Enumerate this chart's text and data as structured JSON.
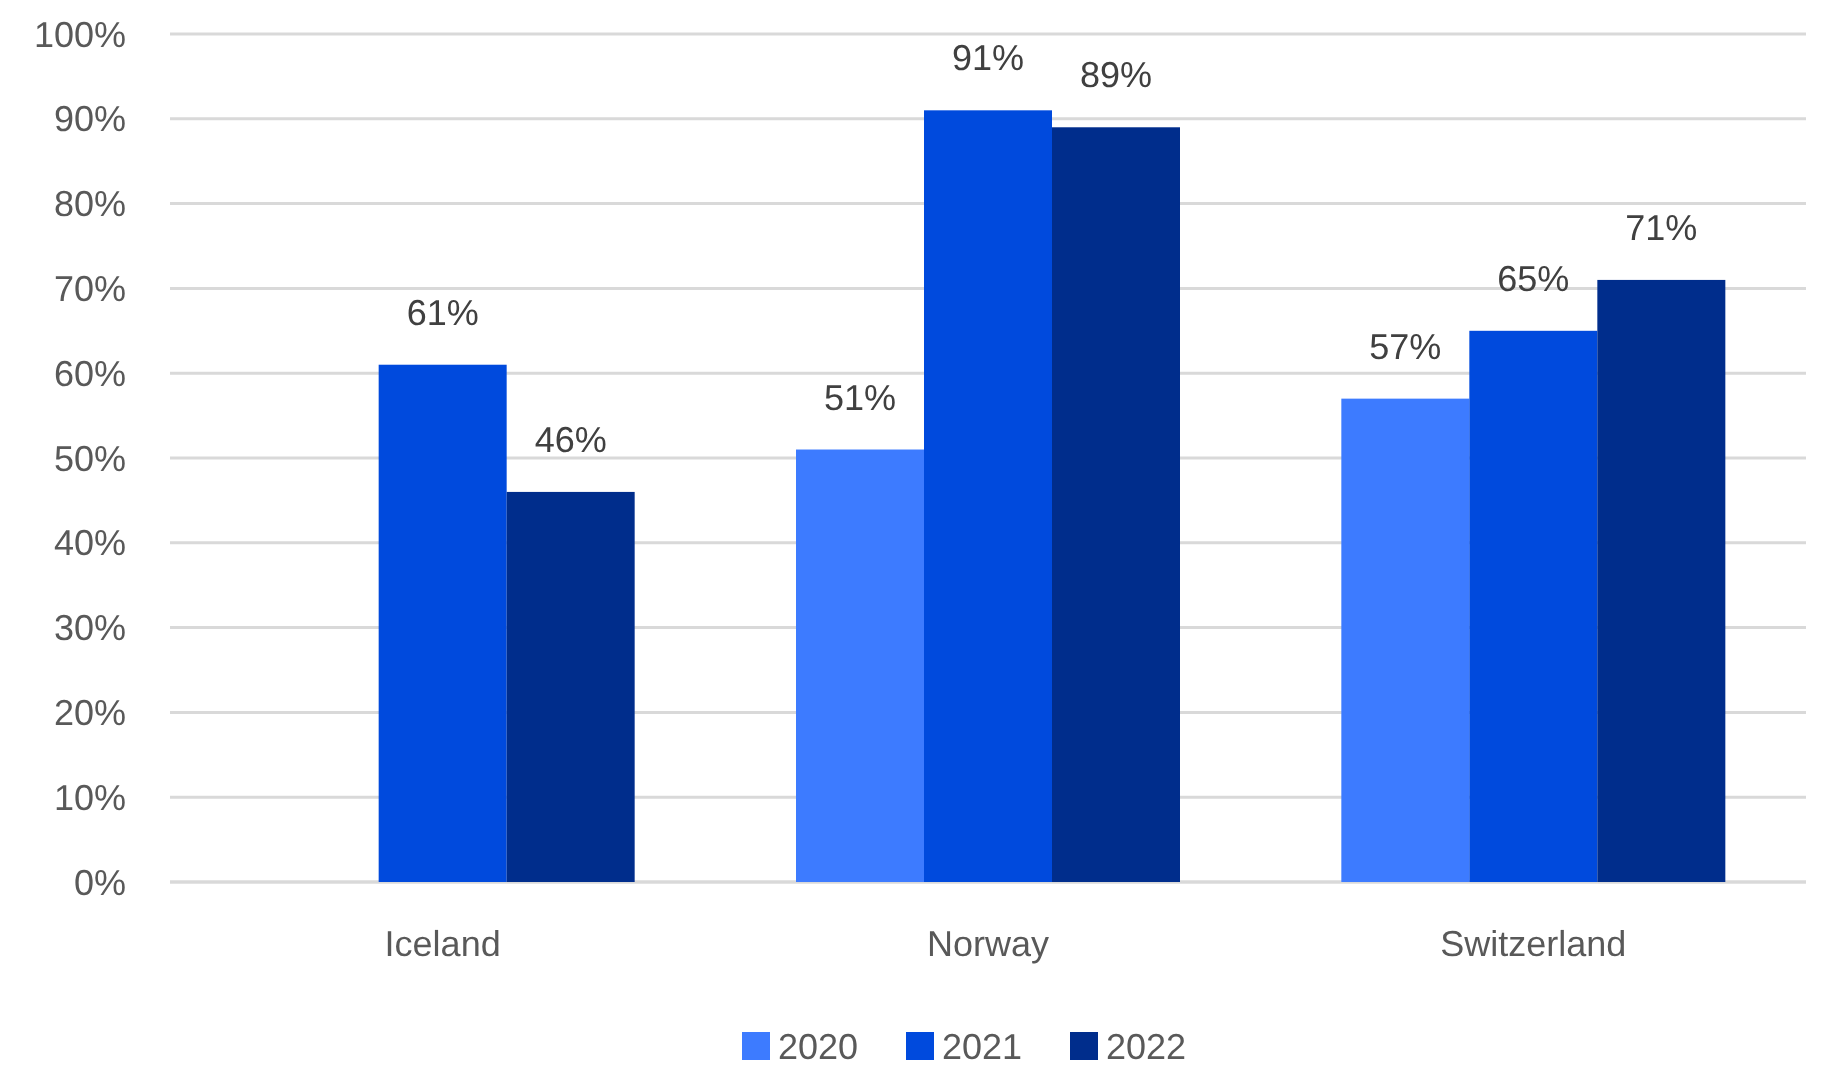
{
  "chart_data": {
    "type": "bar",
    "categories": [
      "Iceland",
      "Norway",
      "Switzerland"
    ],
    "series": [
      {
        "name": "2020",
        "color": "#3d7bff",
        "values": [
          null,
          51,
          57
        ]
      },
      {
        "name": "2021",
        "color": "#004add",
        "values": [
          61,
          91,
          65
        ]
      },
      {
        "name": "2022",
        "color": "#002d8c",
        "values": [
          46,
          89,
          71
        ]
      }
    ],
    "ylim": [
      0,
      100
    ],
    "yticks": [
      {
        "value": 0,
        "label": "0%"
      },
      {
        "value": 10,
        "label": "10%"
      },
      {
        "value": 20,
        "label": "20%"
      },
      {
        "value": 30,
        "label": "30%"
      },
      {
        "value": 40,
        "label": "40%"
      },
      {
        "value": 50,
        "label": "50%"
      },
      {
        "value": 60,
        "label": "60%"
      },
      {
        "value": 70,
        "label": "70%"
      },
      {
        "value": 80,
        "label": "80%"
      },
      {
        "value": 90,
        "label": "90%"
      },
      {
        "value": 100,
        "label": "100%"
      }
    ],
    "value_labels": [
      [
        null,
        "51%",
        "57%"
      ],
      [
        "61%",
        "91%",
        "65%"
      ],
      [
        "46%",
        "89%",
        "71%"
      ]
    ],
    "grid": "y",
    "legend": "bottom"
  }
}
